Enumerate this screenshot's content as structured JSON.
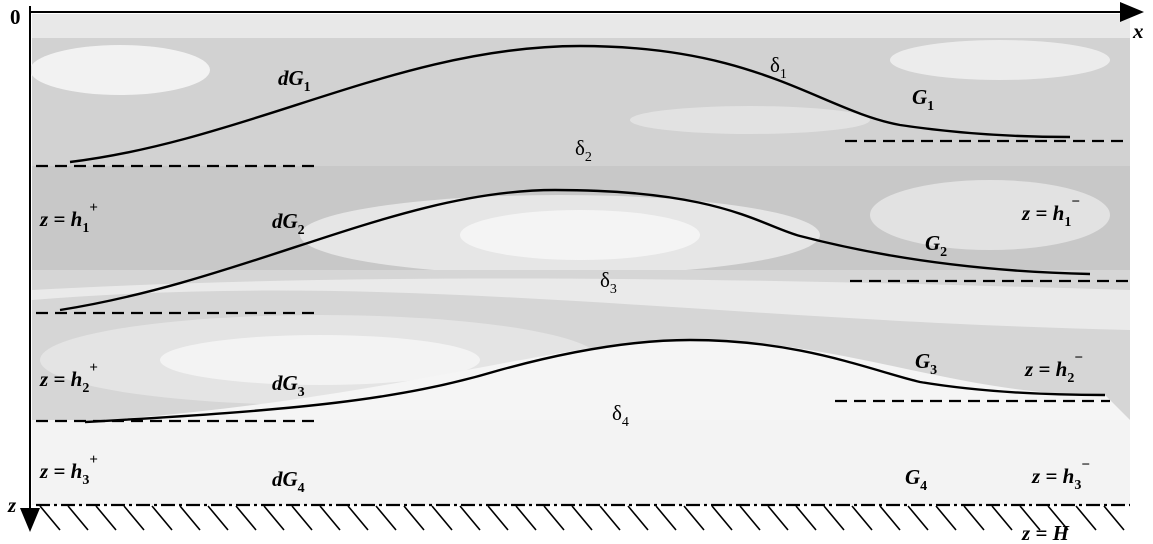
{
  "axes": {
    "origin": "0",
    "x": "x",
    "z": "z"
  },
  "labels": [
    {
      "main": "dG",
      "sub": "1"
    },
    {
      "main": "δ",
      "sub": "1"
    },
    {
      "main": "G",
      "sub": "1"
    },
    {
      "main": "δ",
      "sub": "2"
    },
    {
      "main": "z = h",
      "sub": "1",
      "sup": "+"
    },
    {
      "main": "dG",
      "sub": "2"
    },
    {
      "main": "z = h",
      "sub": "1",
      "sup": "−"
    },
    {
      "main": "G",
      "sub": "2"
    },
    {
      "main": "δ",
      "sub": "3"
    },
    {
      "main": "z = h",
      "sub": "2",
      "sup": "+"
    },
    {
      "main": "dG",
      "sub": "3"
    },
    {
      "main": "G",
      "sub": "3"
    },
    {
      "main": "z = h",
      "sub": "2",
      "sup": "−"
    },
    {
      "main": "δ",
      "sub": "4"
    },
    {
      "main": "z = h",
      "sub": "3",
      "sup": "+"
    },
    {
      "main": "dG",
      "sub": "4"
    },
    {
      "main": "G",
      "sub": "4"
    },
    {
      "main": "z = h",
      "sub": "3",
      "sup": "−"
    },
    {
      "main": "z = H"
    }
  ]
}
